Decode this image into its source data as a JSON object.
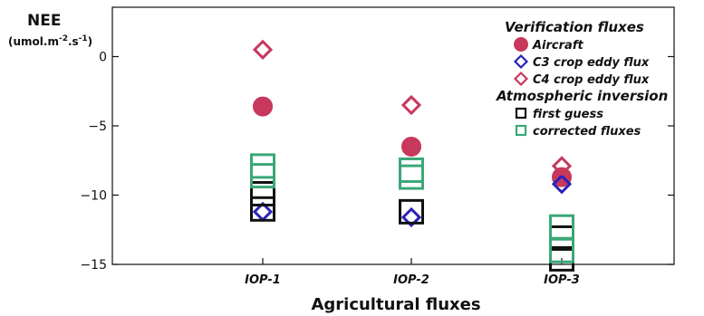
{
  "chart_data": {
    "type": "scatter",
    "ylabel": "NEE",
    "yunit_prefix": "(umol.m",
    "yunit_exp1": "-2",
    "yunit_mid": ".s",
    "yunit_exp2": "-1",
    "yunit_suffix": ")",
    "xlabel": "Agricultural fluxes",
    "categories": [
      "IOP-1",
      "IOP-2",
      "IOP-3"
    ],
    "ylim": [
      -15,
      2.5
    ],
    "yticks": [
      0,
      -5,
      -10,
      -15
    ],
    "ytick_labels": [
      "0",
      "−5",
      "−10",
      "−15"
    ],
    "grid": false,
    "legend_position": "top-right",
    "legend_groups": [
      {
        "heading": "Verification fluxes",
        "entries": [
          {
            "label": "Aircraft",
            "marker": "filled-circle",
            "color": "#c8385c"
          },
          {
            "label": "C3 crop eddy flux",
            "marker": "diamond",
            "color": "#2a22b8"
          },
          {
            "label": "C4 crop eddy flux",
            "marker": "diamond",
            "color": "#c8385c"
          }
        ]
      },
      {
        "heading": "Atmospheric inversion",
        "entries": [
          {
            "label": "first guess",
            "marker": "square",
            "color": "#111111"
          },
          {
            "label": "corrected fluxes",
            "marker": "square",
            "color": "#3aa876"
          }
        ]
      }
    ],
    "series": [
      {
        "name": "Aircraft",
        "marker": "filled-circle",
        "color": "#c8385c",
        "points": [
          {
            "x": "IOP-1",
            "y": -3.6
          },
          {
            "x": "IOP-2",
            "y": -6.5
          },
          {
            "x": "IOP-3",
            "y": -8.7
          }
        ]
      },
      {
        "name": "C3 crop eddy flux",
        "marker": "diamond",
        "color": "#2a22b8",
        "points": [
          {
            "x": "IOP-1",
            "y": -11.2
          },
          {
            "x": "IOP-2",
            "y": -11.6
          },
          {
            "x": "IOP-3",
            "y": -9.2
          }
        ]
      },
      {
        "name": "C4 crop eddy flux",
        "marker": "diamond",
        "color": "#c8385c",
        "points": [
          {
            "x": "IOP-1",
            "y": 0.5
          },
          {
            "x": "IOP-2",
            "y": -3.5
          },
          {
            "x": "IOP-3",
            "y": -7.9
          }
        ]
      },
      {
        "name": "first guess",
        "marker": "square",
        "color": "#111111",
        "points": [
          {
            "x": "IOP-1",
            "y": -9.9
          },
          {
            "x": "IOP-1",
            "y": -11.0
          },
          {
            "x": "IOP-2",
            "y": -11.2
          },
          {
            "x": "IOP-3",
            "y": -13.1
          },
          {
            "x": "IOP-3",
            "y": -14.6
          }
        ]
      },
      {
        "name": "corrected fluxes",
        "marker": "square",
        "color": "#3aa876",
        "points": [
          {
            "x": "IOP-1",
            "y": -7.9
          },
          {
            "x": "IOP-1",
            "y": -8.6
          },
          {
            "x": "IOP-2",
            "y": -8.2
          },
          {
            "x": "IOP-2",
            "y": -8.7
          },
          {
            "x": "IOP-3",
            "y": -12.3
          },
          {
            "x": "IOP-3",
            "y": -14.0
          }
        ]
      }
    ]
  }
}
